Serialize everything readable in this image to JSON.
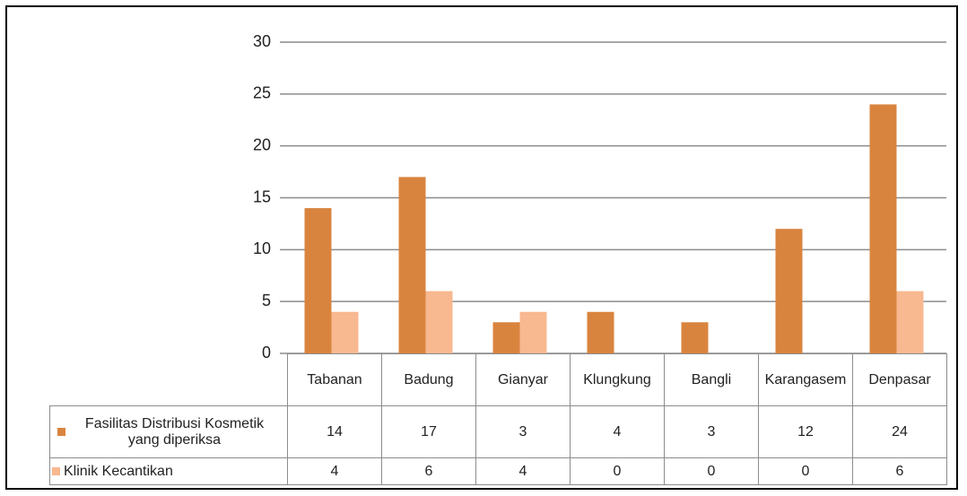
{
  "chart_data": {
    "type": "bar",
    "categories": [
      "Tabanan",
      "Badung",
      "Gianyar",
      "Klungkung",
      "Bangli",
      "Karangasem",
      "Denpasar"
    ],
    "series": [
      {
        "name": "Fasilitas Distribusi Kosmetik yang diperiksa",
        "color": "#d9843e",
        "values": [
          14,
          17,
          3,
          4,
          3,
          12,
          24
        ]
      },
      {
        "name": "Klinik Kecantikan",
        "color": "#f8b890",
        "values": [
          4,
          6,
          4,
          0,
          0,
          0,
          6
        ]
      }
    ],
    "ylim": [
      0,
      30
    ],
    "yticks": [
      0,
      5,
      10,
      15,
      20,
      25,
      30
    ],
    "grid": true
  }
}
